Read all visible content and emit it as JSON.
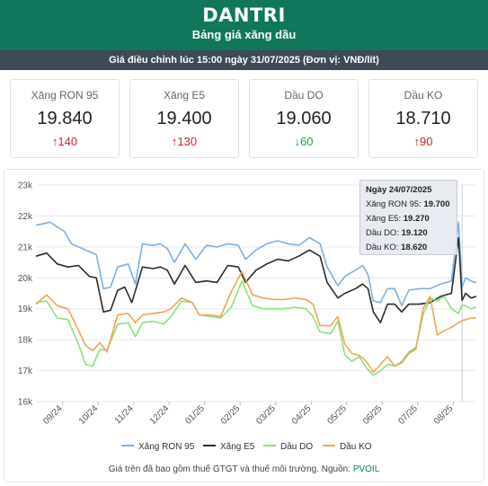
{
  "header": {
    "logo": "DANTRI",
    "title": "Bảng giá xăng dầu"
  },
  "subbar": "Giá điều chỉnh lúc 15:00 ngày 31/07/2025 (Đơn vị: VNĐ/lít)",
  "cards": [
    {
      "name": "Xăng RON 95",
      "price": "19.840",
      "change": "140",
      "direction": "up"
    },
    {
      "name": "Xăng E5",
      "price": "19.400",
      "change": "130",
      "direction": "up"
    },
    {
      "name": "Dầu DO",
      "price": "19.060",
      "change": "60",
      "direction": "down"
    },
    {
      "name": "Dầu KO",
      "price": "18.710",
      "change": "90",
      "direction": "up"
    }
  ],
  "tooltip": {
    "date": "Ngày 24/07/2025",
    "rows": [
      {
        "label": "Xăng RON 95:",
        "value": "19.700"
      },
      {
        "label": "Xăng E5:",
        "value": "19.270"
      },
      {
        "label": "Dầu DO:",
        "value": "19.120"
      },
      {
        "label": "Dầu KO:",
        "value": "18.620"
      }
    ]
  },
  "legend": [
    "Xăng RON 95",
    "Xăng E5",
    "Dầu DO",
    "Dầu KO"
  ],
  "note": {
    "text": "Giá trên đã bao gồm thuế GTGT và thuế môi trường. Nguồn: ",
    "source": "PVOIL"
  },
  "colors": {
    "brand": "#10775c",
    "up": "#d2232a",
    "down": "#2e9d3a"
  },
  "chart_data": {
    "type": "line",
    "ylim": [
      16000,
      23000
    ],
    "yticks": [
      16000,
      17000,
      18000,
      19000,
      20000,
      21000,
      22000,
      23000
    ],
    "ytick_labels": [
      "16k",
      "17k",
      "18k",
      "19k",
      "20k",
      "21k",
      "22k",
      "23k"
    ],
    "xticks": [
      "09/24",
      "10/24",
      "11/24",
      "12/24",
      "01/25",
      "02/25",
      "03/25",
      "04/25",
      "05/25",
      "06/25",
      "07/25",
      "08/25"
    ],
    "xlim": [
      0,
      12.4
    ],
    "grid": true,
    "legend_position": "bottom",
    "series": [
      {
        "name": "Xăng RON 95",
        "color": "#7fb0df",
        "points": [
          [
            0,
            21700
          ],
          [
            0.4,
            21800
          ],
          [
            0.8,
            21500
          ],
          [
            1.0,
            21100
          ],
          [
            1.2,
            21000
          ],
          [
            1.5,
            20850
          ],
          [
            1.7,
            20750
          ],
          [
            1.9,
            19650
          ],
          [
            2.1,
            19700
          ],
          [
            2.3,
            20350
          ],
          [
            2.6,
            20450
          ],
          [
            2.8,
            19800
          ],
          [
            3.0,
            21100
          ],
          [
            3.3,
            21050
          ],
          [
            3.5,
            21100
          ],
          [
            3.7,
            20950
          ],
          [
            3.9,
            20500
          ],
          [
            4.2,
            21100
          ],
          [
            4.5,
            20600
          ],
          [
            4.8,
            21050
          ],
          [
            5.1,
            21000
          ],
          [
            5.4,
            21100
          ],
          [
            5.7,
            21050
          ],
          [
            5.9,
            20600
          ],
          [
            6.2,
            20900
          ],
          [
            6.5,
            21100
          ],
          [
            6.8,
            21200
          ],
          [
            7.1,
            21100
          ],
          [
            7.4,
            21050
          ],
          [
            7.7,
            21300
          ],
          [
            8.0,
            21100
          ],
          [
            8.2,
            20350
          ],
          [
            8.5,
            19750
          ],
          [
            8.7,
            20050
          ],
          [
            9.0,
            20250
          ],
          [
            9.2,
            20400
          ],
          [
            9.35,
            20100
          ],
          [
            9.5,
            19250
          ],
          [
            9.7,
            19200
          ],
          [
            9.9,
            19650
          ],
          [
            10.1,
            19650
          ],
          [
            10.3,
            19100
          ],
          [
            10.5,
            19600
          ],
          [
            10.8,
            19650
          ],
          [
            11.1,
            19650
          ],
          [
            11.4,
            19800
          ],
          [
            11.7,
            19900
          ],
          [
            11.9,
            21800
          ],
          [
            12.0,
            19700
          ],
          [
            12.1,
            20000
          ],
          [
            12.25,
            19900
          ],
          [
            12.4,
            19840
          ]
        ]
      },
      {
        "name": "Xăng E5",
        "color": "#2b2b2b",
        "points": [
          [
            0,
            20700
          ],
          [
            0.3,
            20800
          ],
          [
            0.6,
            20450
          ],
          [
            0.9,
            20350
          ],
          [
            1.2,
            20400
          ],
          [
            1.5,
            20050
          ],
          [
            1.7,
            20000
          ],
          [
            1.9,
            18900
          ],
          [
            2.1,
            18950
          ],
          [
            2.3,
            19600
          ],
          [
            2.5,
            19700
          ],
          [
            2.7,
            19200
          ],
          [
            3.0,
            20350
          ],
          [
            3.3,
            20300
          ],
          [
            3.5,
            20350
          ],
          [
            3.7,
            20250
          ],
          [
            3.9,
            19800
          ],
          [
            4.2,
            20400
          ],
          [
            4.5,
            19850
          ],
          [
            4.8,
            19900
          ],
          [
            5.1,
            19850
          ],
          [
            5.4,
            20400
          ],
          [
            5.7,
            20350
          ],
          [
            5.9,
            19850
          ],
          [
            6.2,
            20250
          ],
          [
            6.5,
            20450
          ],
          [
            6.8,
            20600
          ],
          [
            7.1,
            20550
          ],
          [
            7.4,
            20700
          ],
          [
            7.7,
            20900
          ],
          [
            8.0,
            20700
          ],
          [
            8.2,
            19850
          ],
          [
            8.5,
            19350
          ],
          [
            8.7,
            19500
          ],
          [
            9.0,
            19650
          ],
          [
            9.2,
            19800
          ],
          [
            9.35,
            19650
          ],
          [
            9.5,
            18900
          ],
          [
            9.7,
            18550
          ],
          [
            9.9,
            19150
          ],
          [
            10.1,
            19150
          ],
          [
            10.3,
            18900
          ],
          [
            10.5,
            19150
          ],
          [
            10.8,
            19150
          ],
          [
            11.1,
            19200
          ],
          [
            11.4,
            19400
          ],
          [
            11.7,
            19500
          ],
          [
            11.9,
            21300
          ],
          [
            12.0,
            19270
          ],
          [
            12.1,
            19500
          ],
          [
            12.25,
            19350
          ],
          [
            12.4,
            19400
          ]
        ]
      },
      {
        "name": "Dầu DO",
        "color": "#8ee07b",
        "points": [
          [
            0,
            19200
          ],
          [
            0.3,
            19250
          ],
          [
            0.6,
            18700
          ],
          [
            0.9,
            18650
          ],
          [
            1.2,
            17850
          ],
          [
            1.4,
            17200
          ],
          [
            1.6,
            17150
          ],
          [
            1.8,
            17700
          ],
          [
            2.0,
            17650
          ],
          [
            2.3,
            18500
          ],
          [
            2.6,
            18550
          ],
          [
            2.8,
            18100
          ],
          [
            3.0,
            18550
          ],
          [
            3.3,
            18600
          ],
          [
            3.6,
            18500
          ],
          [
            3.8,
            18750
          ],
          [
            4.1,
            19250
          ],
          [
            4.4,
            19200
          ],
          [
            4.6,
            18800
          ],
          [
            4.9,
            18750
          ],
          [
            5.2,
            18700
          ],
          [
            5.5,
            19050
          ],
          [
            5.8,
            19900
          ],
          [
            6.1,
            19100
          ],
          [
            6.4,
            19000
          ],
          [
            6.7,
            19000
          ],
          [
            7.0,
            19000
          ],
          [
            7.3,
            19050
          ],
          [
            7.6,
            19000
          ],
          [
            7.8,
            18750
          ],
          [
            8.0,
            18250
          ],
          [
            8.3,
            18200
          ],
          [
            8.5,
            18600
          ],
          [
            8.7,
            17500
          ],
          [
            8.9,
            17300
          ],
          [
            9.1,
            17450
          ],
          [
            9.3,
            17100
          ],
          [
            9.5,
            16850
          ],
          [
            9.7,
            17000
          ],
          [
            9.9,
            17200
          ],
          [
            10.1,
            17150
          ],
          [
            10.3,
            17300
          ],
          [
            10.5,
            17600
          ],
          [
            10.7,
            17750
          ],
          [
            10.9,
            18800
          ],
          [
            11.1,
            19350
          ],
          [
            11.3,
            19250
          ],
          [
            11.5,
            19400
          ],
          [
            11.7,
            19000
          ],
          [
            11.9,
            18850
          ],
          [
            12.0,
            19120
          ],
          [
            12.1,
            19100
          ],
          [
            12.25,
            19000
          ],
          [
            12.4,
            19060
          ]
        ]
      },
      {
        "name": "Dầu KO",
        "color": "#f0a455",
        "points": [
          [
            0,
            19150
          ],
          [
            0.3,
            19450
          ],
          [
            0.6,
            19100
          ],
          [
            0.9,
            19000
          ],
          [
            1.2,
            18300
          ],
          [
            1.4,
            17800
          ],
          [
            1.6,
            17650
          ],
          [
            1.8,
            17900
          ],
          [
            2.0,
            17600
          ],
          [
            2.3,
            18800
          ],
          [
            2.6,
            18850
          ],
          [
            2.8,
            18550
          ],
          [
            3.0,
            18800
          ],
          [
            3.3,
            18850
          ],
          [
            3.6,
            18900
          ],
          [
            3.8,
            19000
          ],
          [
            4.1,
            19350
          ],
          [
            4.4,
            19200
          ],
          [
            4.6,
            18800
          ],
          [
            4.9,
            18800
          ],
          [
            5.2,
            18750
          ],
          [
            5.5,
            19550
          ],
          [
            5.8,
            20200
          ],
          [
            6.1,
            19450
          ],
          [
            6.4,
            19350
          ],
          [
            6.7,
            19300
          ],
          [
            7.0,
            19300
          ],
          [
            7.3,
            19350
          ],
          [
            7.6,
            19300
          ],
          [
            7.8,
            19150
          ],
          [
            8.0,
            18450
          ],
          [
            8.3,
            18450
          ],
          [
            8.5,
            18750
          ],
          [
            8.7,
            17850
          ],
          [
            8.9,
            17550
          ],
          [
            9.1,
            17500
          ],
          [
            9.3,
            17300
          ],
          [
            9.5,
            16950
          ],
          [
            9.7,
            17200
          ],
          [
            9.9,
            17450
          ],
          [
            10.1,
            17150
          ],
          [
            10.3,
            17250
          ],
          [
            10.5,
            17550
          ],
          [
            10.7,
            17700
          ],
          [
            10.9,
            19000
          ],
          [
            11.1,
            19400
          ],
          [
            11.3,
            18150
          ],
          [
            11.5,
            18300
          ],
          [
            11.7,
            18400
          ],
          [
            11.9,
            18550
          ],
          [
            12.0,
            18620
          ],
          [
            12.1,
            18650
          ],
          [
            12.25,
            18700
          ],
          [
            12.4,
            18710
          ]
        ]
      }
    ]
  }
}
